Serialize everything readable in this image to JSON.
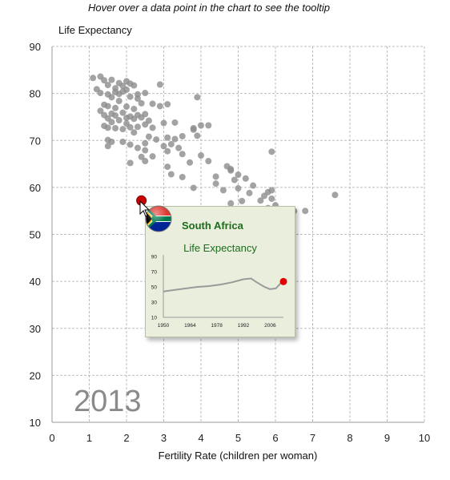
{
  "header": {
    "hint": "Hover over a data point in the chart to see the tooltip"
  },
  "chart_data": {
    "type": "scatter",
    "title": "",
    "xlabel": "Fertility Rate (children per woman)",
    "ylabel": "Life Expectancy",
    "xlim": [
      0,
      10
    ],
    "ylim": [
      10,
      90
    ],
    "xticks": [
      0,
      1,
      2,
      3,
      4,
      5,
      6,
      7,
      8,
      9,
      10
    ],
    "yticks": [
      10,
      20,
      30,
      40,
      50,
      60,
      70,
      80,
      90
    ],
    "grid": true,
    "year_label": "2013",
    "point_color": "#8c8c8c",
    "highlight_color": "#cc0000",
    "highlight": {
      "country": "South Africa",
      "x": 2.4,
      "y": 57.2
    },
    "points": [
      [
        1.1,
        83.3
      ],
      [
        1.2,
        80.9
      ],
      [
        1.3,
        83.6
      ],
      [
        1.4,
        82.8
      ],
      [
        1.5,
        81.8
      ],
      [
        1.6,
        82.9
      ],
      [
        1.7,
        80.3
      ],
      [
        1.8,
        82.2
      ],
      [
        1.9,
        81.6
      ],
      [
        2.0,
        82.6
      ],
      [
        2.1,
        82.1
      ],
      [
        2.2,
        81.7
      ],
      [
        1.3,
        80.1
      ],
      [
        1.5,
        79.8
      ],
      [
        1.6,
        79.2
      ],
      [
        1.7,
        81.1
      ],
      [
        1.8,
        79.9
      ],
      [
        1.9,
        80.4
      ],
      [
        2.0,
        80.8
      ],
      [
        2.1,
        79.3
      ],
      [
        2.3,
        79.8
      ],
      [
        2.5,
        80.1
      ],
      [
        2.9,
        81.9
      ],
      [
        1.4,
        77.6
      ],
      [
        1.5,
        77.3
      ],
      [
        1.7,
        76.9
      ],
      [
        1.8,
        78.4
      ],
      [
        2.0,
        77.2
      ],
      [
        2.2,
        76.7
      ],
      [
        2.3,
        78.9
      ],
      [
        2.4,
        77.9
      ],
      [
        2.7,
        77.8
      ],
      [
        2.9,
        77.3
      ],
      [
        3.1,
        77.7
      ],
      [
        1.3,
        76.3
      ],
      [
        1.4,
        75.4
      ],
      [
        1.5,
        74.7
      ],
      [
        1.6,
        75.7
      ],
      [
        1.7,
        75.3
      ],
      [
        1.8,
        74.3
      ],
      [
        1.9,
        75.9
      ],
      [
        2.0,
        74.8
      ],
      [
        2.1,
        75.1
      ],
      [
        2.2,
        74.6
      ],
      [
        2.3,
        75.4
      ],
      [
        2.4,
        74.9
      ],
      [
        2.5,
        75.6
      ],
      [
        2.6,
        74.2
      ],
      [
        1.4,
        73.1
      ],
      [
        1.5,
        72.7
      ],
      [
        1.6,
        73.9
      ],
      [
        1.7,
        72.6
      ],
      [
        1.9,
        72.4
      ],
      [
        2.0,
        73.6
      ],
      [
        2.1,
        72.8
      ],
      [
        2.2,
        71.7
      ],
      [
        2.3,
        72.9
      ],
      [
        2.5,
        73.4
      ],
      [
        2.7,
        72.7
      ],
      [
        3.0,
        73.7
      ],
      [
        3.3,
        73.8
      ],
      [
        1.5,
        70.1
      ],
      [
        1.6,
        69.7
      ],
      [
        1.5,
        68.8
      ],
      [
        1.9,
        69.7
      ],
      [
        2.1,
        69.1
      ],
      [
        2.5,
        69.4
      ],
      [
        2.6,
        70.8
      ],
      [
        2.8,
        70.2
      ],
      [
        3.1,
        70.6
      ],
      [
        3.3,
        70.3
      ],
      [
        3.5,
        70.9
      ],
      [
        3.8,
        72.3
      ],
      [
        2.3,
        68.4
      ],
      [
        2.5,
        67.9
      ],
      [
        2.4,
        66.5
      ],
      [
        2.7,
        66.6
      ],
      [
        3.0,
        68.8
      ],
      [
        3.1,
        67.7
      ],
      [
        3.2,
        69.2
      ],
      [
        3.4,
        68.4
      ],
      [
        3.5,
        67.1
      ],
      [
        3.8,
        72.6
      ],
      [
        4.0,
        73.2
      ],
      [
        4.2,
        73.2
      ],
      [
        3.9,
        71.0
      ],
      [
        3.7,
        65.3
      ],
      [
        2.1,
        65.2
      ],
      [
        2.5,
        65.6
      ],
      [
        3.1,
        64.4
      ],
      [
        3.2,
        62.8
      ],
      [
        3.5,
        62.2
      ],
      [
        3.8,
        59.9
      ],
      [
        4.0,
        66.8
      ],
      [
        4.2,
        65.6
      ],
      [
        4.4,
        62.3
      ],
      [
        4.4,
        60.8
      ],
      [
        4.7,
        64.5
      ],
      [
        4.8,
        63.9
      ],
      [
        4.9,
        61.6
      ],
      [
        5.0,
        62.7
      ],
      [
        5.2,
        61.9
      ],
      [
        5.4,
        60.4
      ],
      [
        5.0,
        59.8
      ],
      [
        5.3,
        58.8
      ],
      [
        5.7,
        58.2
      ],
      [
        5.8,
        59.0
      ],
      [
        5.9,
        59.4
      ],
      [
        5.6,
        57.2
      ],
      [
        5.8,
        55.6
      ],
      [
        5.9,
        57.6
      ],
      [
        6.0,
        56.2
      ],
      [
        6.1,
        55.4
      ],
      [
        6.2,
        54.6
      ],
      [
        6.5,
        55.0
      ],
      [
        6.8,
        55.0
      ],
      [
        7.6,
        58.4
      ],
      [
        4.8,
        56.6
      ],
      [
        5.1,
        57.1
      ],
      [
        5.9,
        67.6
      ],
      [
        3.9,
        79.2
      ],
      [
        4.8,
        63.6
      ],
      [
        4.6,
        59.4
      ]
    ]
  },
  "tooltip": {
    "country": "South Africa",
    "metric": "Life Expectancy",
    "mini_chart": {
      "type": "line",
      "x": [
        1950,
        1956,
        1962,
        1968,
        1974,
        1980,
        1986,
        1992,
        1996,
        1999,
        2003,
        2006,
        2009,
        2012
      ],
      "y": [
        44,
        46,
        48,
        50,
        51,
        53,
        56,
        60,
        61,
        56,
        50,
        47,
        48,
        56
      ],
      "xticks": [
        1950,
        1964,
        1978,
        1992,
        2006
      ],
      "yticks": [
        10,
        30,
        50,
        70,
        90
      ],
      "ylim": [
        10,
        90
      ],
      "line_color": "#9a9a9a",
      "marker_color": "#e00000",
      "marker": {
        "x": 2013,
        "y": 57
      }
    }
  }
}
